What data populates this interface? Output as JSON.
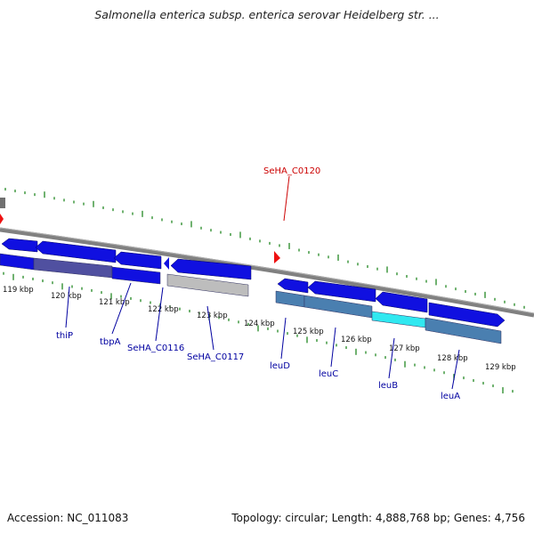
{
  "header": {
    "title": "Salmonella enterica subsp. enterica serovar Heidelberg str. ..."
  },
  "footer": {
    "accession": "Accession: NC_011083",
    "topology": "Topology: circular; Length: 4,888,768 bp; Genes: 4,756"
  },
  "ticks": {
    "labels": [
      "119 kbp",
      "120 kbp",
      "121 kbp",
      "122 kbp",
      "123 kbp",
      "124 kbp",
      "125 kbp",
      "126 kbp",
      "127 kbp",
      "128 kbp",
      "129 kbp"
    ]
  },
  "genes": {
    "names": [
      "thiP",
      "tbpA",
      "SeHA_C0116",
      "SeHA_C0117",
      "leuD",
      "leuC",
      "leuB",
      "leuA"
    ],
    "highlight": "SeHA_C0120"
  },
  "colors": {
    "cds": "#1010e0",
    "cds_dark": "#5050a0",
    "leu_blue": "#4a7fb0",
    "hypothetical": "#bdbdbd",
    "highlight_cyan": "#30e8f0",
    "tick_green": "#228822",
    "backbone": "#808080",
    "marker_red": "#ee1111"
  }
}
